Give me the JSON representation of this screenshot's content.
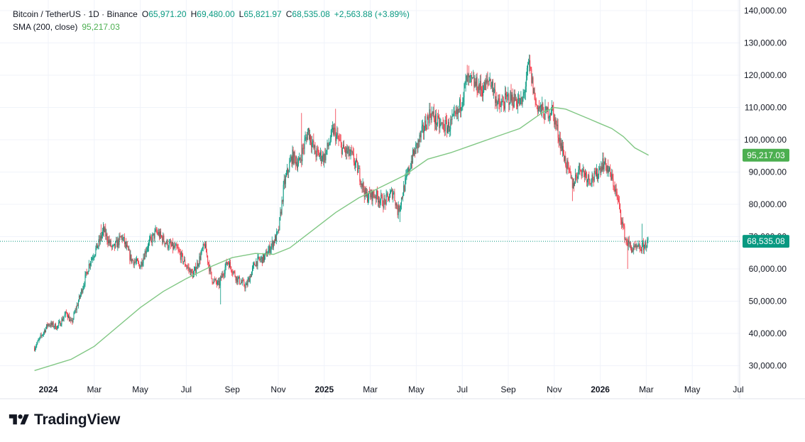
{
  "legend": {
    "symbol": "Bitcoin / TetherUS · 1D · Binance",
    "o_label": "O",
    "o_value": "65,971.20",
    "h_label": "H",
    "h_value": "69,480.00",
    "l_label": "L",
    "l_value": "65,821.97",
    "c_label": "C",
    "c_value": "68,535.08",
    "change": "+2,563.88 (+3.89%)",
    "sma_label": "SMA (200, close)",
    "sma_value": "95,217.03"
  },
  "brand": {
    "name": "TradingView"
  },
  "colors": {
    "up": "#089981",
    "down": "#f23645",
    "sma": "#81c784",
    "sma_tag": "#4caf50",
    "grid": "#f0f3fa",
    "text": "#131722"
  },
  "chart_data": {
    "type": "candlestick",
    "symbol": "BTCUSDT",
    "interval": "1D",
    "exchange": "Binance",
    "ylim": [
      25000,
      142000
    ],
    "y_ticks": [
      {
        "value": 30000,
        "label": "30,000.00"
      },
      {
        "value": 40000,
        "label": "40,000.00"
      },
      {
        "value": 50000,
        "label": "50,000.00"
      },
      {
        "value": 60000,
        "label": "60,000.00"
      },
      {
        "value": 70000,
        "label": "70,000.00"
      },
      {
        "value": 80000,
        "label": "80,000.00"
      },
      {
        "value": 90000,
        "label": "90,000.00"
      },
      {
        "value": 100000,
        "label": "100,000.00"
      },
      {
        "value": 110000,
        "label": "110,000.00"
      },
      {
        "value": 120000,
        "label": "120,000.00"
      },
      {
        "value": 130000,
        "label": "130,000.00"
      },
      {
        "value": 140000,
        "label": "140,000.00"
      }
    ],
    "x_ticks": [
      {
        "month": 0,
        "label": "2024",
        "bold": true
      },
      {
        "month": 2,
        "label": "Mar",
        "bold": false
      },
      {
        "month": 4,
        "label": "May",
        "bold": false
      },
      {
        "month": 6,
        "label": "Jul",
        "bold": false
      },
      {
        "month": 8,
        "label": "Sep",
        "bold": false
      },
      {
        "month": 10,
        "label": "Nov",
        "bold": false
      },
      {
        "month": 12,
        "label": "2025",
        "bold": true
      },
      {
        "month": 14,
        "label": "Mar",
        "bold": false
      },
      {
        "month": 16,
        "label": "May",
        "bold": false
      },
      {
        "month": 18,
        "label": "Jul",
        "bold": false
      },
      {
        "month": 20,
        "label": "Sep",
        "bold": false
      },
      {
        "month": 22,
        "label": "Nov",
        "bold": false
      },
      {
        "month": 24,
        "label": "2026",
        "bold": true
      },
      {
        "month": 26,
        "label": "Mar",
        "bold": false
      },
      {
        "month": 28,
        "label": "May",
        "bold": false
      },
      {
        "month": 30,
        "label": "Jul",
        "bold": false
      }
    ],
    "x_range_months": [
      -0.6,
      31.6
    ],
    "price_path": [
      [
        -0.6,
        35500
      ],
      [
        0,
        43000
      ],
      [
        0.4,
        42000
      ],
      [
        0.8,
        46500
      ],
      [
        1.0,
        43000
      ],
      [
        1.4,
        52000
      ],
      [
        1.8,
        62000
      ],
      [
        2.2,
        68000
      ],
      [
        2.4,
        72000
      ],
      [
        2.8,
        66000
      ],
      [
        3.2,
        70000
      ],
      [
        3.6,
        63000
      ],
      [
        4.0,
        61000
      ],
      [
        4.3,
        67000
      ],
      [
        4.7,
        71500
      ],
      [
        5.2,
        67500
      ],
      [
        5.6,
        66000
      ],
      [
        6.0,
        61000
      ],
      [
        6.3,
        58000
      ],
      [
        6.8,
        67500
      ],
      [
        7.1,
        57000
      ],
      [
        7.4,
        55000
      ],
      [
        7.8,
        62500
      ],
      [
        8.2,
        57000
      ],
      [
        8.6,
        54500
      ],
      [
        9.0,
        62000
      ],
      [
        9.4,
        63500
      ],
      [
        9.8,
        68500
      ],
      [
        10.0,
        71000
      ],
      [
        10.25,
        86000
      ],
      [
        10.6,
        95000
      ],
      [
        10.9,
        92500
      ],
      [
        11.3,
        103000
      ],
      [
        11.6,
        96000
      ],
      [
        12.0,
        94500
      ],
      [
        12.4,
        103000
      ],
      [
        12.8,
        97000
      ],
      [
        13.2,
        95000
      ],
      [
        13.5,
        90000
      ],
      [
        13.8,
        82500
      ],
      [
        14.2,
        83000
      ],
      [
        14.6,
        80500
      ],
      [
        15.0,
        84000
      ],
      [
        15.2,
        77500
      ],
      [
        15.5,
        86000
      ],
      [
        15.8,
        94000
      ],
      [
        16.3,
        103000
      ],
      [
        16.6,
        108500
      ],
      [
        17.0,
        104500
      ],
      [
        17.4,
        104000
      ],
      [
        17.8,
        108000
      ],
      [
        18.2,
        118500
      ],
      [
        18.6,
        117000
      ],
      [
        18.9,
        115500
      ],
      [
        19.2,
        119000
      ],
      [
        19.6,
        110000
      ],
      [
        20.0,
        113000
      ],
      [
        20.3,
        112500
      ],
      [
        20.6,
        111000
      ],
      [
        20.9,
        123500
      ],
      [
        21.2,
        111000
      ],
      [
        21.6,
        108000
      ],
      [
        21.9,
        109500
      ],
      [
        22.2,
        101000
      ],
      [
        22.5,
        93000
      ],
      [
        22.8,
        86000
      ],
      [
        23.1,
        91500
      ],
      [
        23.5,
        88000
      ],
      [
        23.8,
        88500
      ],
      [
        24.1,
        93000
      ],
      [
        24.3,
        91500
      ],
      [
        24.6,
        86000
      ],
      [
        24.8,
        80000
      ],
      [
        25.1,
        69000
      ],
      [
        25.4,
        66000
      ],
      [
        25.8,
        66500
      ],
      [
        26.1,
        68500
      ]
    ],
    "sma_path": [
      [
        -0.6,
        28500
      ],
      [
        1.0,
        32000
      ],
      [
        2.0,
        36000
      ],
      [
        3.0,
        42000
      ],
      [
        4.0,
        48000
      ],
      [
        5.0,
        53000
      ],
      [
        6.0,
        57000
      ],
      [
        7.0,
        60500
      ],
      [
        8.0,
        63500
      ],
      [
        9.0,
        64800
      ],
      [
        9.8,
        64500
      ],
      [
        10.5,
        66500
      ],
      [
        11.5,
        72000
      ],
      [
        12.5,
        77500
      ],
      [
        13.5,
        82000
      ],
      [
        14.5,
        85500
      ],
      [
        15.5,
        89000
      ],
      [
        16.5,
        94000
      ],
      [
        17.5,
        96000
      ],
      [
        18.5,
        98500
      ],
      [
        19.5,
        101000
      ],
      [
        20.5,
        103500
      ],
      [
        21.0,
        106000
      ],
      [
        21.5,
        108500
      ],
      [
        22.0,
        110000
      ],
      [
        22.5,
        109500
      ],
      [
        23.0,
        108000
      ],
      [
        23.5,
        106500
      ],
      [
        24.0,
        105000
      ],
      [
        24.5,
        103500
      ],
      [
        25.0,
        101000
      ],
      [
        25.5,
        97500
      ],
      [
        26.1,
        95217
      ]
    ],
    "low_spikes": [
      [
        7.5,
        49000
      ],
      [
        15.3,
        74500
      ],
      [
        22.8,
        81000
      ],
      [
        25.2,
        60000
      ]
    ],
    "high_spikes": [
      [
        2.3,
        73800
      ],
      [
        11.0,
        108300
      ],
      [
        12.5,
        109600
      ],
      [
        18.2,
        123200
      ],
      [
        20.9,
        126200
      ],
      [
        25.8,
        74000
      ]
    ],
    "last_price": {
      "value": 68535.08,
      "label": "68,535.08"
    },
    "sma_last": {
      "value": 95217.03,
      "label": "95,217.03"
    }
  }
}
